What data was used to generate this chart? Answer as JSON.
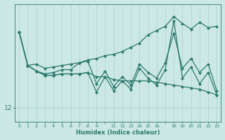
{
  "xlabel": "Humidex (Indice chaleur)",
  "ylabel": "",
  "bg_color": "#cce8e4",
  "line_color": "#2d7a6e",
  "marker_color": "#2d7a6e",
  "xlim": [
    -0.5,
    23.5
  ],
  "ylim": [
    11.5,
    15.7
  ],
  "yticks": [
    12
  ],
  "grid_color": "#aad4cc",
  "lines": [
    [
      14.7,
      13.5,
      13.55,
      13.4,
      13.45,
      13.5,
      13.55,
      13.6,
      13.7,
      13.75,
      13.85,
      13.9,
      14.0,
      14.15,
      14.3,
      14.6,
      14.75,
      14.9,
      15.25,
      15.0,
      14.8,
      15.05,
      14.85,
      14.9
    ],
    [
      14.7,
      13.5,
      13.3,
      13.2,
      13.25,
      13.35,
      13.35,
      13.6,
      13.65,
      12.85,
      13.3,
      12.75,
      13.1,
      12.8,
      13.55,
      13.25,
      13.05,
      13.6,
      14.65,
      13.4,
      13.75,
      13.25,
      13.55,
      12.6
    ],
    [
      14.7,
      13.5,
      13.3,
      13.15,
      13.15,
      13.2,
      13.2,
      13.2,
      13.25,
      13.1,
      13.1,
      13.0,
      12.95,
      12.95,
      12.95,
      12.95,
      12.9,
      12.85,
      12.8,
      12.75,
      12.7,
      12.65,
      12.55,
      12.45
    ],
    [
      14.7,
      13.5,
      13.3,
      13.15,
      13.15,
      13.2,
      13.2,
      13.2,
      13.25,
      12.55,
      13.1,
      12.6,
      12.95,
      12.65,
      13.4,
      13.05,
      12.8,
      13.35,
      15.1,
      13.05,
      13.45,
      12.85,
      13.25,
      12.45
    ]
  ],
  "x_vals": [
    0,
    1,
    2,
    3,
    4,
    5,
    6,
    7,
    8,
    9,
    10,
    11,
    12,
    13,
    14,
    15,
    16,
    17,
    18,
    19,
    20,
    21,
    22,
    23
  ],
  "xtick_labels": [
    "0",
    "1",
    "2",
    "3",
    "4",
    "5",
    "6",
    "7",
    "8",
    "9",
    "",
    "11",
    "12",
    "13",
    "14",
    "15",
    "16",
    "",
    "18",
    "19",
    "20",
    "21",
    "22",
    "23"
  ]
}
